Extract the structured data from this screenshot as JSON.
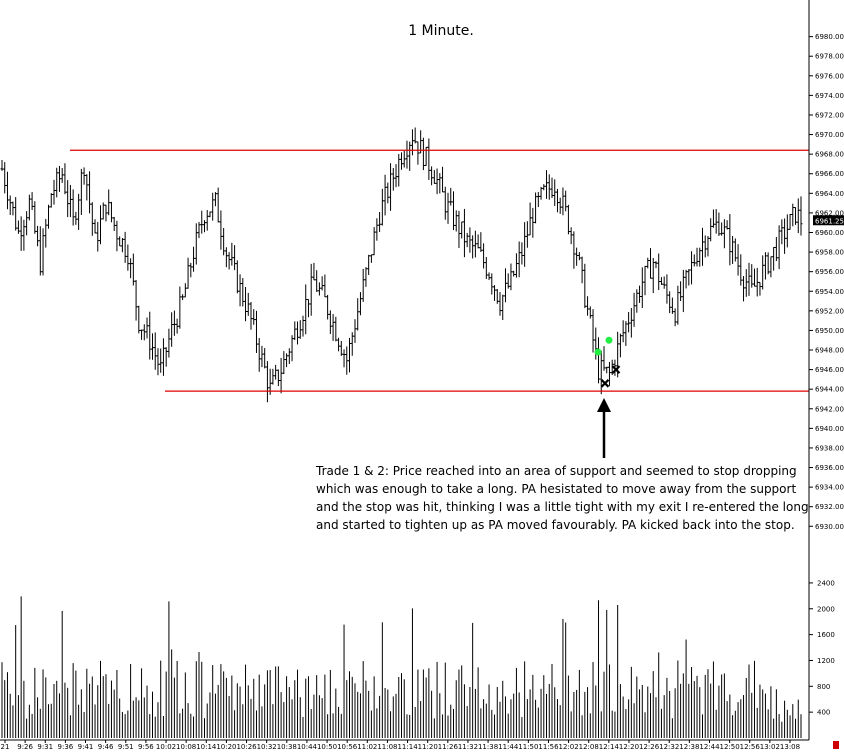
{
  "chart_data": [
    {
      "type": "ohlc",
      "title": "1 Minute.",
      "y_ticks": [
        "6980.00",
        "6978.00",
        "6976.00",
        "6974.00",
        "6972.00",
        "6970.00",
        "6968.00",
        "6966.00",
        "6964.00",
        "6962.00",
        "6960.00",
        "6958.00",
        "6956.00",
        "6954.00",
        "6952.00",
        "6950.00",
        "6948.00",
        "6946.00",
        "6944.00",
        "6942.00",
        "6940.00",
        "6938.00",
        "6936.00",
        "6934.00",
        "6932.00",
        "6930.00"
      ],
      "ylim": [
        6928.6,
        6981.8
      ],
      "last_price": "6961.25",
      "resistance_level": 6968.4,
      "support_level": 6943.8,
      "close_path": [
        [
          0,
          6966.5
        ],
        [
          6,
          6960.0
        ],
        [
          10,
          6963.0
        ],
        [
          14,
          6957.0
        ],
        [
          18,
          6964.0
        ],
        [
          22,
          6966.0
        ],
        [
          26,
          6961.0
        ],
        [
          30,
          6967.0
        ],
        [
          34,
          6959.0
        ],
        [
          38,
          6963.0
        ],
        [
          42,
          6960.0
        ],
        [
          46,
          6958.0
        ],
        [
          50,
          6951.0
        ],
        [
          54,
          6949.0
        ],
        [
          58,
          6946.0
        ],
        [
          62,
          6950.0
        ],
        [
          66,
          6953.0
        ],
        [
          70,
          6958.0
        ],
        [
          74,
          6962.0
        ],
        [
          78,
          6963.0
        ],
        [
          82,
          6958.0
        ],
        [
          86,
          6955.0
        ],
        [
          90,
          6952.0
        ],
        [
          94,
          6948.0
        ],
        [
          98,
          6944.0
        ],
        [
          102,
          6946.0
        ],
        [
          106,
          6949.0
        ],
        [
          110,
          6952.0
        ],
        [
          114,
          6955.0
        ],
        [
          118,
          6953.0
        ],
        [
          122,
          6950.0
        ],
        [
          126,
          6947.0
        ],
        [
          130,
          6952.0
        ],
        [
          134,
          6957.0
        ],
        [
          138,
          6962.0
        ],
        [
          142,
          6965.0
        ],
        [
          146,
          6968.0
        ],
        [
          150,
          6970.0
        ],
        [
          154,
          6968.0
        ],
        [
          158,
          6966.0
        ],
        [
          162,
          6963.0
        ],
        [
          166,
          6961.0
        ],
        [
          170,
          6959.0
        ],
        [
          174,
          6958.0
        ],
        [
          178,
          6956.0
        ],
        [
          182,
          6953.0
        ],
        [
          186,
          6955.0
        ],
        [
          190,
          6958.0
        ],
        [
          194,
          6962.0
        ],
        [
          198,
          6964.0
        ],
        [
          202,
          6965.0
        ],
        [
          206,
          6962.0
        ],
        [
          210,
          6958.0
        ],
        [
          214,
          6952.0
        ],
        [
          218,
          6946.0
        ],
        [
          222,
          6945.5
        ],
        [
          226,
          6949.0
        ],
        [
          230,
          6952.0
        ],
        [
          234,
          6955.0
        ],
        [
          238,
          6957.0
        ],
        [
          242,
          6954.0
        ],
        [
          246,
          6952.0
        ],
        [
          250,
          6955.0
        ],
        [
          254,
          6958.0
        ],
        [
          258,
          6960.0
        ],
        [
          262,
          6961.0
        ],
        [
          266,
          6959.0
        ],
        [
          270,
          6956.0
        ],
        [
          274,
          6954.0
        ],
        [
          278,
          6956.0
        ],
        [
          282,
          6958.0
        ],
        [
          286,
          6960.0
        ],
        [
          290,
          6962.0
        ],
        [
          292,
          6961.25
        ]
      ],
      "volume": {
        "y_ticks": [
          "2400",
          "2000",
          "1600",
          "1200",
          "800",
          "400"
        ],
        "ylim": [
          0,
          2600
        ]
      },
      "x_ticks": [
        "21",
        "9:26",
        "9:31",
        "9:36",
        "9:41",
        "9:46",
        "9:51",
        "9:56",
        "10:02",
        "10:08",
        "10:14",
        "10:20",
        "10:26",
        "10:32",
        "10:38",
        "10:44",
        "10:50",
        "10:56",
        "11:02",
        "11:08",
        "11:14",
        "11:20",
        "11:26",
        "11:32",
        "11:38",
        "11:44",
        "11:50",
        "11:56",
        "12:02",
        "12:08",
        "12:14",
        "12:20",
        "12:26",
        "12:32",
        "12:38",
        "12:44",
        "12:50",
        "12:56",
        "13:02",
        "13:08"
      ],
      "annotation": {
        "lines": [
          "Trade 1 & 2:  Price reached into an area of support and seemed to stop dropping",
          "which was enough to take a long.  PA hesistated to move away from the support",
          "and the stop was hit, thinking I was a little tight with my exit I re-entered the long",
          "and started to tighten up as PA moved favourably.  PA kicked back into the stop."
        ]
      },
      "colors": {
        "level_line": "#e00000",
        "entry_marker": "#22ee44",
        "bars": "#000000",
        "accent": "#cc0000"
      }
    }
  ]
}
